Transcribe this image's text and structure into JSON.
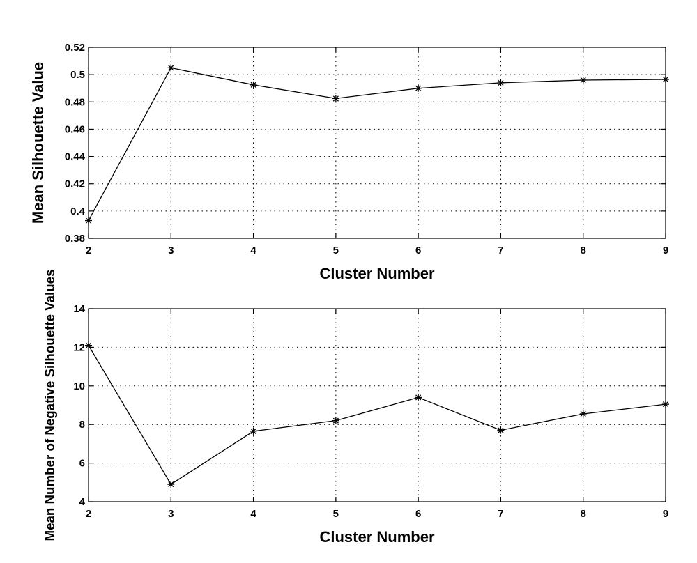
{
  "chart_data": [
    {
      "type": "line",
      "title": "",
      "xlabel": "Cluster Number",
      "ylabel": "Mean Silhouette Value",
      "xlim": [
        2,
        9
      ],
      "ylim": [
        0.38,
        0.52
      ],
      "xticks": [
        2,
        3,
        4,
        5,
        6,
        7,
        8,
        9
      ],
      "xtick_labels": [
        "2",
        "3",
        "4",
        "5",
        "6",
        "7",
        "8",
        "9"
      ],
      "yticks": [
        0.38,
        0.4,
        0.42,
        0.44,
        0.46,
        0.48,
        0.5,
        0.52
      ],
      "ytick_labels": [
        "0.38",
        "0.4",
        "0.42",
        "0.44",
        "0.46",
        "0.48",
        "0.5",
        "0.52"
      ],
      "grid": true,
      "marker": "asterisk",
      "color": "#000000",
      "series": [
        {
          "x": [
            2,
            3,
            4,
            5,
            6,
            7,
            8,
            9
          ],
          "values": [
            0.393,
            0.505,
            0.4925,
            0.4825,
            0.49,
            0.494,
            0.496,
            0.4965
          ]
        }
      ]
    },
    {
      "type": "line",
      "title": "",
      "xlabel": "Cluster Number",
      "ylabel": "Mean Number of Negative Silhouette Values",
      "xlim": [
        2,
        9
      ],
      "ylim": [
        4,
        14
      ],
      "xticks": [
        2,
        3,
        4,
        5,
        6,
        7,
        8,
        9
      ],
      "xtick_labels": [
        "2",
        "3",
        "4",
        "5",
        "6",
        "7",
        "8",
        "9"
      ],
      "yticks": [
        4,
        6,
        8,
        10,
        12,
        14
      ],
      "ytick_labels": [
        "4",
        "6",
        "8",
        "10",
        "12",
        "14"
      ],
      "grid": true,
      "marker": "asterisk",
      "color": "#000000",
      "series": [
        {
          "x": [
            2,
            3,
            4,
            5,
            6,
            7,
            8,
            9
          ],
          "values": [
            12.1,
            4.9,
            7.65,
            8.2,
            9.4,
            7.7,
            8.55,
            9.05
          ]
        }
      ]
    }
  ]
}
